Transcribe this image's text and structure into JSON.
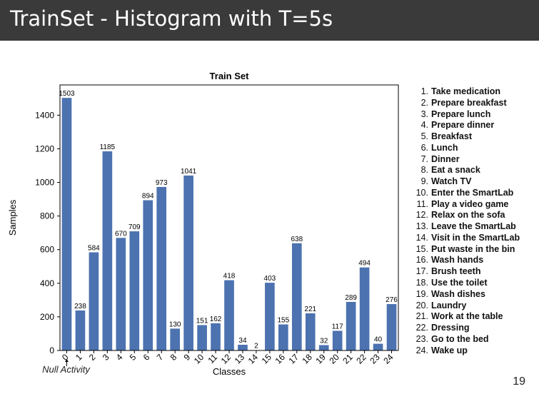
{
  "slide": {
    "title": "TrainSet - Histogram with T=5s",
    "page_number": "19"
  },
  "chart_data": {
    "type": "bar",
    "title": "Train Set",
    "xlabel": "Classes",
    "ylabel": "Samples",
    "categories": [
      "0",
      "1",
      "2",
      "3",
      "4",
      "5",
      "6",
      "7",
      "8",
      "9",
      "10",
      "11",
      "12",
      "13",
      "14",
      "15",
      "16",
      "17",
      "18",
      "19",
      "20",
      "21",
      "22",
      "23",
      "24"
    ],
    "values": [
      1503,
      238,
      584,
      1185,
      670,
      709,
      894,
      973,
      130,
      1041,
      151,
      162,
      418,
      34,
      2,
      403,
      155,
      638,
      221,
      32,
      117,
      289,
      494,
      40,
      276
    ],
    "ylim": [
      0,
      1580
    ],
    "yticks": [
      0,
      200,
      400,
      600,
      800,
      1000,
      1200,
      1400
    ],
    "bar_color": "#4c72b0",
    "annotation": "Null Activity",
    "grid": false
  },
  "legend": [
    {
      "num": "1.",
      "label": "Take medication"
    },
    {
      "num": "2.",
      "label": "Prepare breakfast"
    },
    {
      "num": "3.",
      "label": "Prepare lunch"
    },
    {
      "num": "4.",
      "label": "Prepare dinner"
    },
    {
      "num": "5.",
      "label": "Breakfast"
    },
    {
      "num": "6.",
      "label": "Lunch"
    },
    {
      "num": "7.",
      "label": "Dinner"
    },
    {
      "num": "8.",
      "label": "Eat a snack"
    },
    {
      "num": "9.",
      "label": "Watch TV"
    },
    {
      "num": "10.",
      "label": "Enter the SmartLab"
    },
    {
      "num": "11.",
      "label": "Play a video game"
    },
    {
      "num": "12.",
      "label": "Relax on the sofa"
    },
    {
      "num": "13.",
      "label": "Leave the SmartLab"
    },
    {
      "num": "14.",
      "label": "Visit in the SmartLab"
    },
    {
      "num": "15.",
      "label": "Put waste in the bin"
    },
    {
      "num": "16.",
      "label": "Wash hands"
    },
    {
      "num": "17.",
      "label": "Brush teeth"
    },
    {
      "num": "18.",
      "label": "Use the toilet"
    },
    {
      "num": "19.",
      "label": "Wash dishes"
    },
    {
      "num": "20.",
      "label": "Laundry"
    },
    {
      "num": "21.",
      "label": "Work at the table"
    },
    {
      "num": "22.",
      "label": "Dressing"
    },
    {
      "num": "23.",
      "label": "Go to the bed"
    },
    {
      "num": "24.",
      "label": "Wake up"
    }
  ]
}
